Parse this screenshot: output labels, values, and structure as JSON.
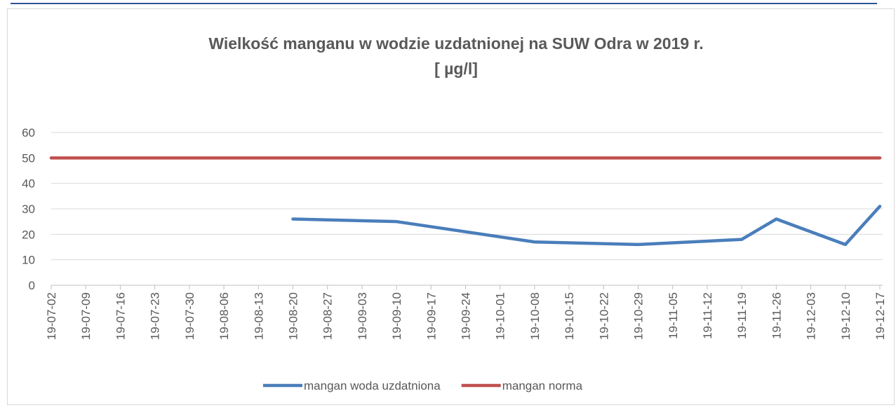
{
  "chart_data": {
    "type": "line",
    "title": [
      "Wielkość manganu w wodzie uzdatnionej na SUW Odra w 2019 r.",
      "[ µg/l]"
    ],
    "categories": [
      "19-07-02",
      "19-07-09",
      "19-07-16",
      "19-07-23",
      "19-07-30",
      "19-08-06",
      "19-08-13",
      "19-08-20",
      "19-08-27",
      "19-09-03",
      "19-09-10",
      "19-09-17",
      "19-09-24",
      "19-10-01",
      "19-10-08",
      "19-10-15",
      "19-10-22",
      "19-10-29",
      "19-11-05",
      "19-11-12",
      "19-11-19",
      "19-11-26",
      "19-12-03",
      "19-12-10",
      "19-12-17"
    ],
    "series": [
      {
        "name": "mangan woda uzdatniona",
        "color": "#4a7ebb",
        "x": [
          "19-08-20",
          "19-09-10",
          "19-10-08",
          "19-10-29",
          "19-11-19",
          "19-11-26",
          "19-12-10",
          "19-12-17"
        ],
        "values": [
          26,
          25,
          17,
          16,
          18,
          26,
          16,
          31
        ]
      },
      {
        "name": "mangan norma",
        "color": "#c0504d",
        "x": [
          "19-07-02",
          "19-12-17"
        ],
        "values": [
          50,
          50
        ]
      }
    ],
    "ylim": [
      0,
      60
    ],
    "yticks": [
      0,
      10,
      20,
      30,
      40,
      50,
      60
    ],
    "grid": true,
    "legend": "bottom"
  }
}
